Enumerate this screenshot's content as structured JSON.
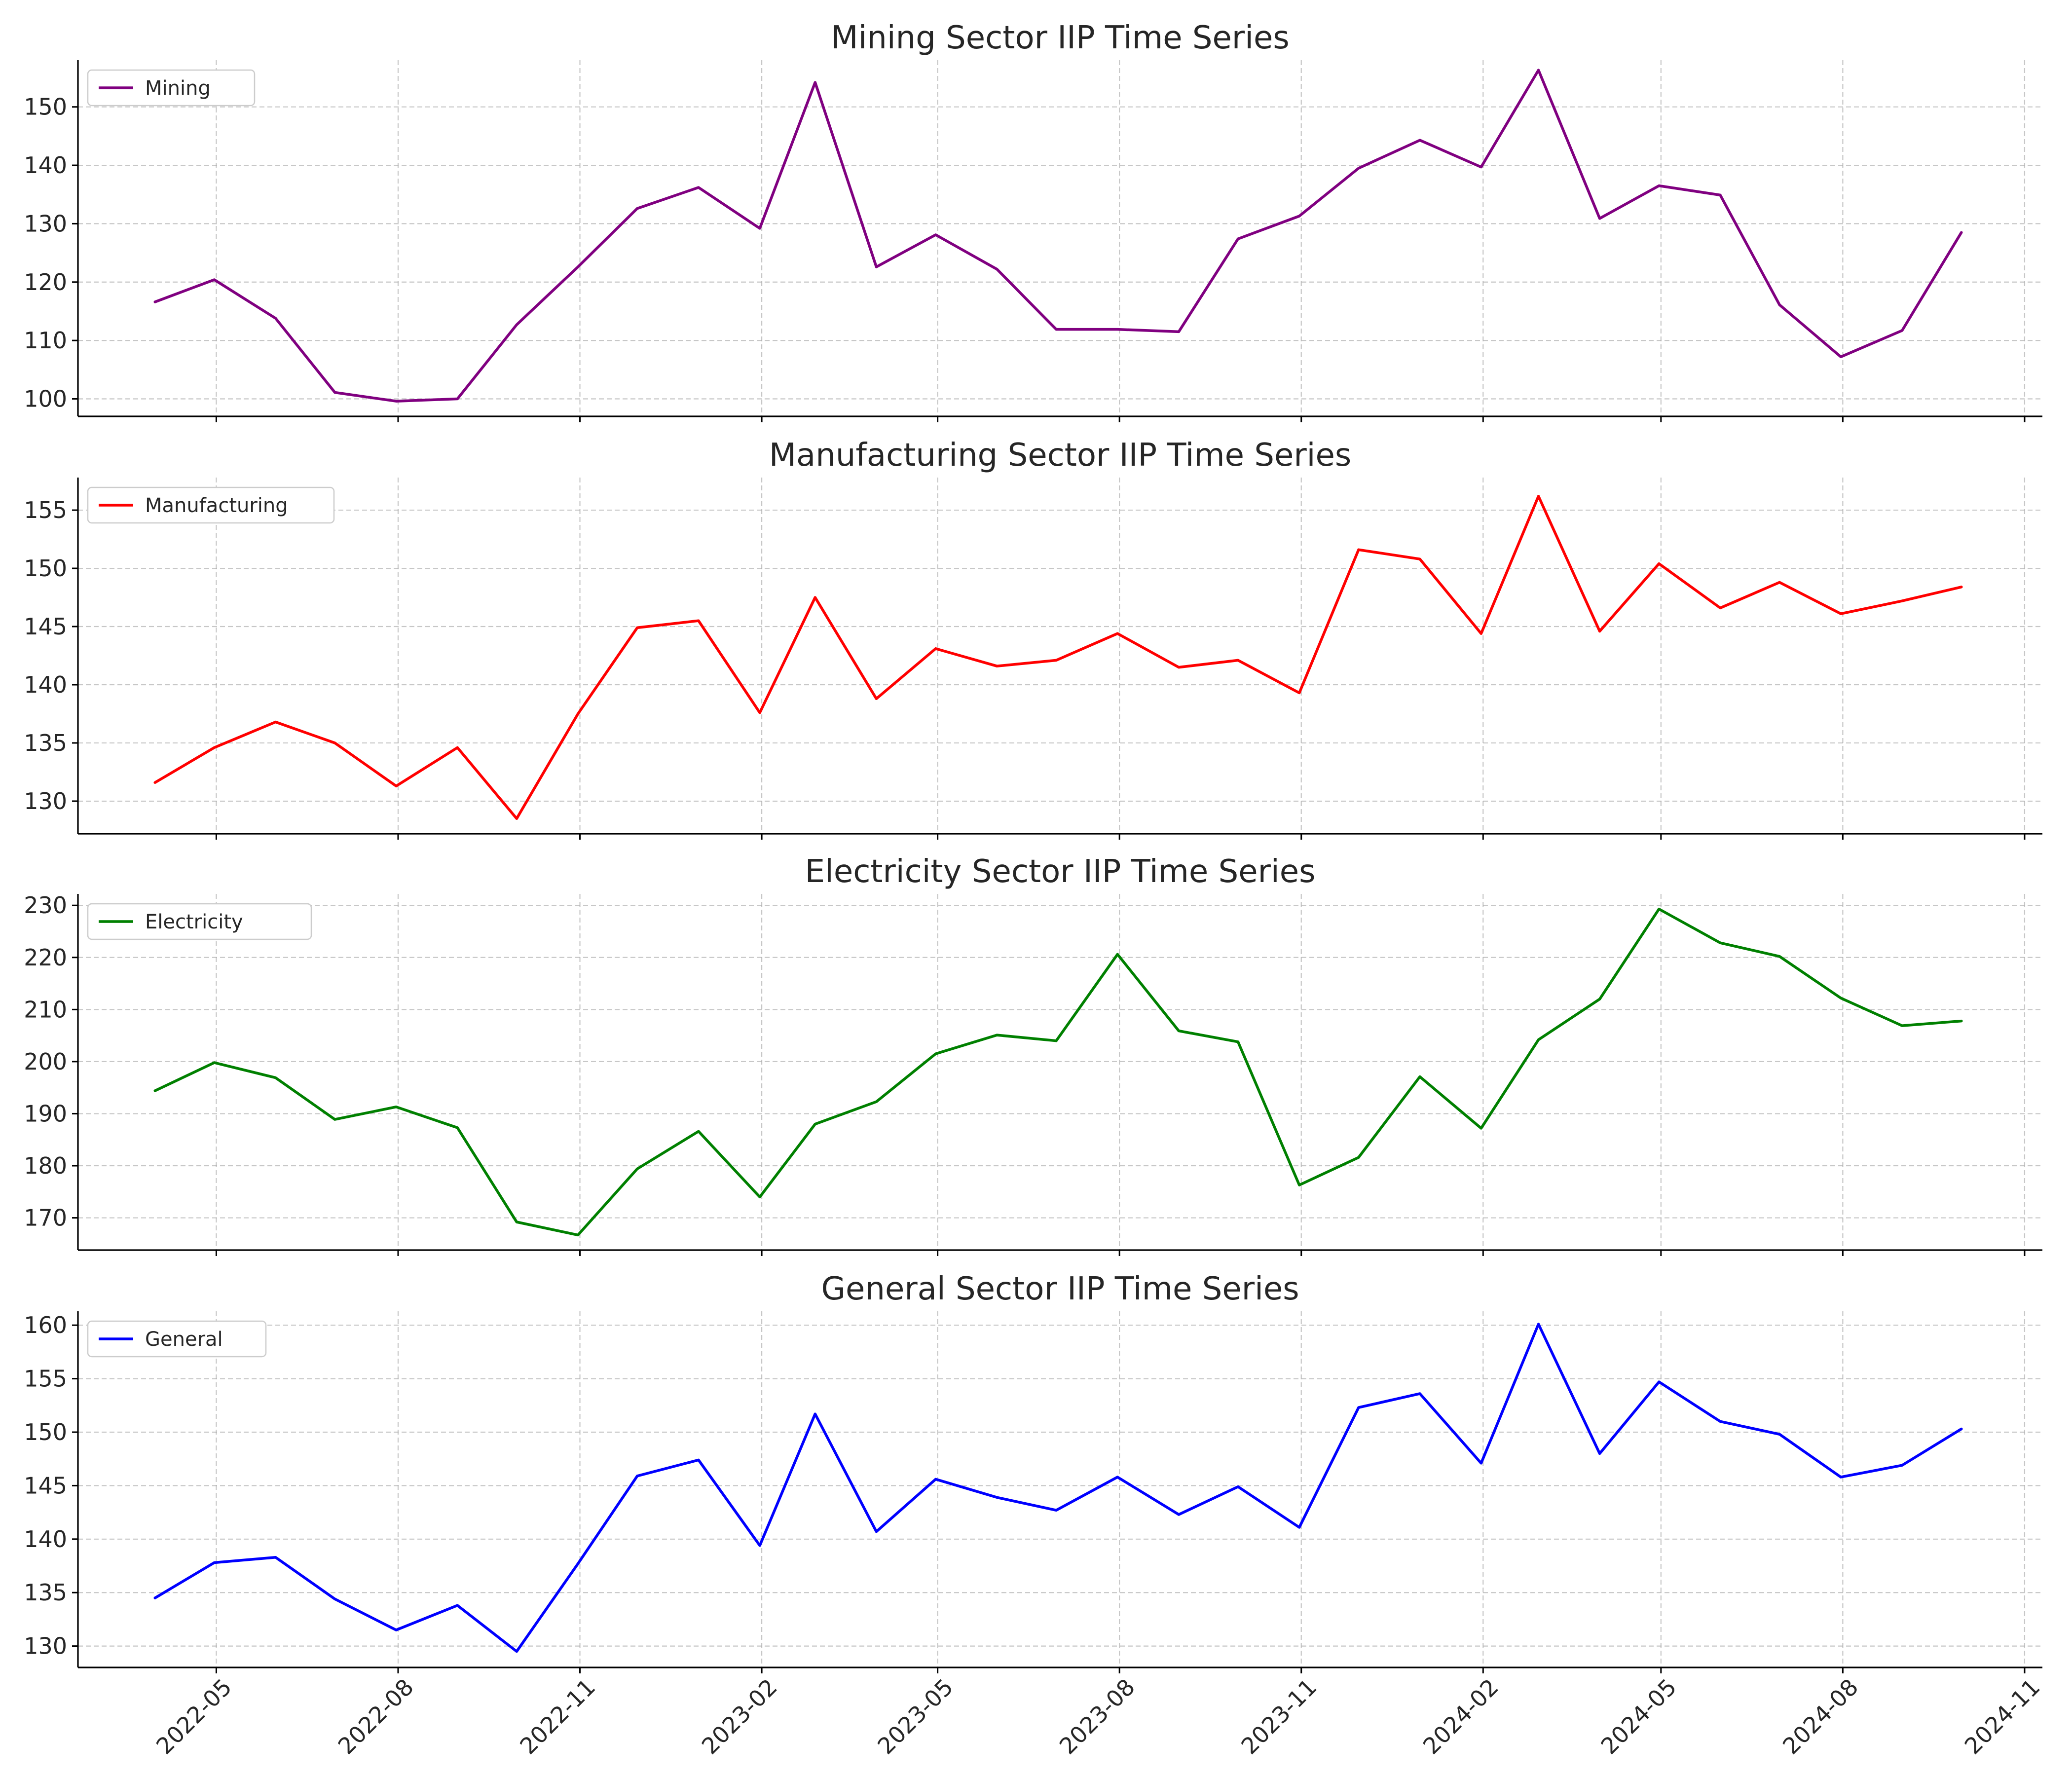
{
  "chart_data": [
    {
      "type": "line",
      "title": "Mining Sector IIP Time Series",
      "legend_position": "upper-left",
      "grid": true,
      "xlim": [
        "2022-02-20",
        "2024-11-10"
      ],
      "ylim": [
        97,
        158
      ],
      "yticks": [
        100,
        110,
        120,
        130,
        140,
        150
      ],
      "color": "#800080",
      "series": [
        {
          "name": "Mining",
          "x": [
            "2022-03-31",
            "2022-04-30",
            "2022-05-31",
            "2022-06-30",
            "2022-07-31",
            "2022-08-31",
            "2022-09-30",
            "2022-10-31",
            "2022-11-30",
            "2022-12-31",
            "2023-01-31",
            "2023-02-28",
            "2023-03-31",
            "2023-04-30",
            "2023-05-31",
            "2023-06-30",
            "2023-07-31",
            "2023-08-31",
            "2023-09-30",
            "2023-10-31",
            "2023-11-30",
            "2023-12-31",
            "2024-01-31",
            "2024-02-29",
            "2024-03-31",
            "2024-04-30",
            "2024-05-31",
            "2024-06-30",
            "2024-07-31",
            "2024-08-31",
            "2024-09-30"
          ],
          "values": [
            116.6,
            120.4,
            113.8,
            101.1,
            99.6,
            100.0,
            112.7,
            122.6,
            132.6,
            136.2,
            129.2,
            154.2,
            122.6,
            128.1,
            122.2,
            111.9,
            111.9,
            111.5,
            127.4,
            131.3,
            139.5,
            144.3,
            139.7,
            156.3,
            130.9,
            136.5,
            134.9,
            116.1,
            107.2,
            111.7,
            128.5
          ]
        }
      ]
    },
    {
      "type": "line",
      "title": "Manufacturing Sector IIP Time Series",
      "legend_position": "upper-left",
      "grid": true,
      "xlim": [
        "2022-02-20",
        "2024-11-10"
      ],
      "ylim": [
        127.2,
        157.8
      ],
      "yticks": [
        130,
        135,
        140,
        145,
        150,
        155
      ],
      "color": "#ff0000",
      "series": [
        {
          "name": "Manufacturing",
          "x": [
            "2022-03-31",
            "2022-04-30",
            "2022-05-31",
            "2022-06-30",
            "2022-07-31",
            "2022-08-31",
            "2022-09-30",
            "2022-10-31",
            "2022-11-30",
            "2022-12-31",
            "2023-01-31",
            "2023-02-28",
            "2023-03-31",
            "2023-04-30",
            "2023-05-31",
            "2023-06-30",
            "2023-07-31",
            "2023-08-31",
            "2023-09-30",
            "2023-10-31",
            "2023-11-30",
            "2023-12-31",
            "2024-01-31",
            "2024-02-29",
            "2024-03-31",
            "2024-04-30",
            "2024-05-31",
            "2024-06-30",
            "2024-07-31",
            "2024-08-31",
            "2024-09-30"
          ],
          "values": [
            131.6,
            134.6,
            136.8,
            135.0,
            131.3,
            134.6,
            128.5,
            137.5,
            144.9,
            145.5,
            137.6,
            147.5,
            138.8,
            143.1,
            141.6,
            142.1,
            144.4,
            141.5,
            142.1,
            139.3,
            151.6,
            150.8,
            144.4,
            156.2,
            144.6,
            150.4,
            146.6,
            148.8,
            146.1,
            147.2,
            148.4
          ]
        }
      ]
    },
    {
      "type": "line",
      "title": "Electricity Sector IIP Time Series",
      "legend_position": "upper-left",
      "grid": true,
      "xlim": [
        "2022-02-20",
        "2024-11-10"
      ],
      "ylim": [
        163.8,
        232.2
      ],
      "yticks": [
        170,
        180,
        190,
        200,
        210,
        220,
        230
      ],
      "color": "#008000",
      "series": [
        {
          "name": "Electricity",
          "x": [
            "2022-03-31",
            "2022-04-30",
            "2022-05-31",
            "2022-06-30",
            "2022-07-31",
            "2022-08-31",
            "2022-09-30",
            "2022-10-31",
            "2022-11-30",
            "2022-12-31",
            "2023-01-31",
            "2023-02-28",
            "2023-03-31",
            "2023-04-30",
            "2023-05-31",
            "2023-06-30",
            "2023-07-31",
            "2023-08-31",
            "2023-09-30",
            "2023-10-31",
            "2023-11-30",
            "2023-12-31",
            "2024-01-31",
            "2024-02-29",
            "2024-03-31",
            "2024-04-30",
            "2024-05-31",
            "2024-06-30",
            "2024-07-31",
            "2024-08-31",
            "2024-09-30"
          ],
          "values": [
            194.4,
            199.8,
            196.9,
            188.9,
            191.3,
            187.3,
            169.2,
            166.7,
            179.4,
            186.6,
            174.0,
            188.0,
            192.3,
            201.5,
            205.1,
            204.0,
            220.6,
            205.9,
            203.8,
            176.3,
            181.6,
            197.1,
            187.2,
            204.2,
            212.0,
            229.3,
            222.8,
            220.2,
            212.2,
            206.9,
            207.8
          ]
        }
      ]
    },
    {
      "type": "line",
      "title": "General Sector IIP Time Series",
      "legend_position": "upper-left",
      "grid": true,
      "xlim": [
        "2022-02-20",
        "2024-11-10"
      ],
      "ylim": [
        128.0,
        161.3
      ],
      "yticks": [
        130,
        135,
        140,
        145,
        150,
        155,
        160
      ],
      "xticks": [
        "2022-05",
        "2022-08",
        "2022-11",
        "2023-02",
        "2023-05",
        "2023-08",
        "2023-11",
        "2024-02",
        "2024-05",
        "2024-08",
        "2024-11"
      ],
      "color": "#0000ff",
      "series": [
        {
          "name": "General",
          "x": [
            "2022-03-31",
            "2022-04-30",
            "2022-05-31",
            "2022-06-30",
            "2022-07-31",
            "2022-08-31",
            "2022-09-30",
            "2022-10-31",
            "2022-11-30",
            "2022-12-31",
            "2023-01-31",
            "2023-02-28",
            "2023-03-31",
            "2023-04-30",
            "2023-05-31",
            "2023-06-30",
            "2023-07-31",
            "2023-08-31",
            "2023-09-30",
            "2023-10-31",
            "2023-11-30",
            "2023-12-31",
            "2024-01-31",
            "2024-02-29",
            "2024-03-31",
            "2024-04-30",
            "2024-05-31",
            "2024-06-30",
            "2024-07-31",
            "2024-08-31",
            "2024-09-30"
          ],
          "values": [
            134.5,
            137.8,
            138.3,
            134.4,
            131.5,
            133.8,
            129.5,
            137.7,
            145.9,
            147.4,
            139.4,
            151.7,
            140.7,
            145.6,
            143.9,
            142.7,
            145.8,
            142.3,
            144.9,
            141.1,
            152.3,
            153.6,
            147.1,
            160.1,
            148.0,
            154.7,
            151.0,
            149.8,
            145.8,
            146.9,
            150.3
          ]
        }
      ]
    }
  ]
}
